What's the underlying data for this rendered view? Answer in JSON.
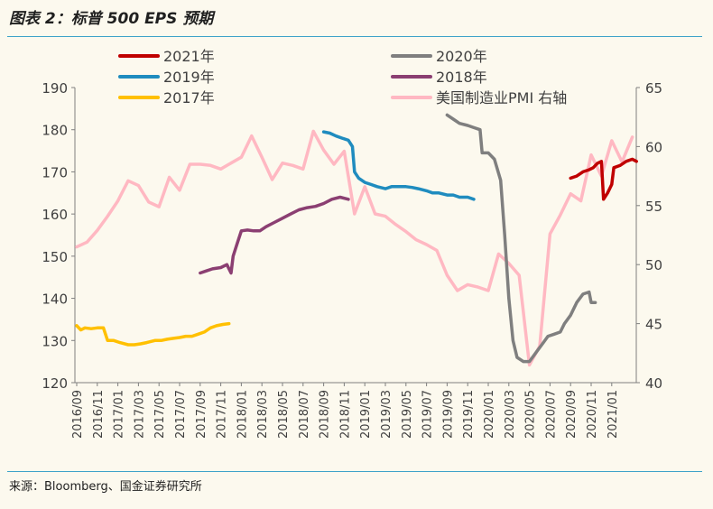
{
  "title": "图表 2：标普 500 EPS 预期",
  "source": "来源：Bloomberg、国金证券研究所",
  "chart_data": {
    "type": "line",
    "title": "图表 2：标普 500 EPS 预期",
    "y_left": {
      "min": 120,
      "max": 190,
      "ticks": [
        120,
        130,
        140,
        150,
        160,
        170,
        180,
        190
      ]
    },
    "y_right": {
      "min": 40,
      "max": 65,
      "ticks": [
        40,
        45,
        50,
        55,
        60,
        65
      ]
    },
    "x_ticks": [
      "2016/09",
      "2016/11",
      "2017/01",
      "2017/03",
      "2017/05",
      "2017/07",
      "2017/09",
      "2017/11",
      "2018/01",
      "2018/03",
      "2018/05",
      "2018/07",
      "2018/09",
      "2018/11",
      "2019/01",
      "2019/03",
      "2019/05",
      "2019/07",
      "2019/09",
      "2019/11",
      "2020/01",
      "2020/03",
      "2020/05",
      "2020/07",
      "2020/09",
      "2020/11",
      "2021/01"
    ],
    "grid": false,
    "legend_placement": "top",
    "series": [
      {
        "name": "2021年",
        "color": "#c00000",
        "axis": "left",
        "points": [
          [
            24.0,
            168.5
          ],
          [
            24.3,
            169
          ],
          [
            24.6,
            170
          ],
          [
            24.9,
            170.5
          ],
          [
            25.1,
            171
          ],
          [
            25.3,
            172
          ],
          [
            25.5,
            172.5
          ],
          [
            25.6,
            163.5
          ],
          [
            25.8,
            165
          ],
          [
            26.0,
            167
          ],
          [
            26.1,
            171
          ],
          [
            26.4,
            171.5
          ],
          [
            26.7,
            172.5
          ],
          [
            27.0,
            173
          ],
          [
            27.2,
            172.5
          ]
        ]
      },
      {
        "name": "2020年",
        "color": "#7f7f7f",
        "axis": "left",
        "points": [
          [
            18.0,
            183.5
          ],
          [
            18.3,
            182.5
          ],
          [
            18.6,
            181.5
          ],
          [
            19.0,
            181
          ],
          [
            19.3,
            180.5
          ],
          [
            19.6,
            180
          ],
          [
            19.7,
            174.5
          ],
          [
            20.0,
            174.5
          ],
          [
            20.3,
            173
          ],
          [
            20.6,
            168
          ],
          [
            20.8,
            155
          ],
          [
            21.0,
            140
          ],
          [
            21.2,
            130
          ],
          [
            21.4,
            126
          ],
          [
            21.7,
            125
          ],
          [
            22.0,
            125
          ],
          [
            22.3,
            127
          ],
          [
            22.6,
            129
          ],
          [
            22.9,
            131
          ],
          [
            23.2,
            131.5
          ],
          [
            23.5,
            132
          ],
          [
            23.7,
            134
          ],
          [
            24.0,
            136
          ],
          [
            24.3,
            139
          ],
          [
            24.6,
            141
          ],
          [
            24.9,
            141.5
          ],
          [
            25.0,
            139
          ],
          [
            25.2,
            139
          ]
        ]
      },
      {
        "name": "2019年",
        "color": "#1f8cbf",
        "axis": "left",
        "points": [
          [
            12.0,
            179.5
          ],
          [
            12.3,
            179.2
          ],
          [
            12.6,
            178.5
          ],
          [
            12.9,
            178
          ],
          [
            13.2,
            177.5
          ],
          [
            13.4,
            176
          ],
          [
            13.5,
            170
          ],
          [
            13.7,
            168.5
          ],
          [
            14.0,
            167.5
          ],
          [
            14.3,
            167
          ],
          [
            14.6,
            166.5
          ],
          [
            15.0,
            166
          ],
          [
            15.3,
            166.5
          ],
          [
            15.6,
            166.5
          ],
          [
            16.0,
            166.5
          ],
          [
            16.3,
            166.3
          ],
          [
            16.6,
            166
          ],
          [
            17.0,
            165.5
          ],
          [
            17.3,
            165
          ],
          [
            17.6,
            165
          ],
          [
            18.0,
            164.5
          ],
          [
            18.3,
            164.5
          ],
          [
            18.6,
            164
          ],
          [
            19.0,
            164
          ],
          [
            19.3,
            163.5
          ]
        ]
      },
      {
        "name": "2018年",
        "color": "#8b3f72",
        "axis": "left",
        "points": [
          [
            6.0,
            146
          ],
          [
            6.3,
            146.5
          ],
          [
            6.6,
            147
          ],
          [
            7.0,
            147.3
          ],
          [
            7.3,
            148
          ],
          [
            7.5,
            146
          ],
          [
            7.6,
            150
          ],
          [
            7.8,
            153
          ],
          [
            8.0,
            156
          ],
          [
            8.3,
            156.2
          ],
          [
            8.6,
            156
          ],
          [
            8.9,
            156
          ],
          [
            9.2,
            157
          ],
          [
            9.6,
            158
          ],
          [
            10.0,
            159
          ],
          [
            10.4,
            160
          ],
          [
            10.8,
            161
          ],
          [
            11.2,
            161.5
          ],
          [
            11.6,
            161.8
          ],
          [
            12.0,
            162.5
          ],
          [
            12.4,
            163.5
          ],
          [
            12.8,
            164
          ],
          [
            13.2,
            163.5
          ]
        ]
      },
      {
        "name": "2017年",
        "color": "#ffc000",
        "axis": "left",
        "points": [
          [
            0.0,
            133.5
          ],
          [
            0.2,
            132.5
          ],
          [
            0.4,
            133
          ],
          [
            0.7,
            132.8
          ],
          [
            1.0,
            133
          ],
          [
            1.3,
            133
          ],
          [
            1.5,
            130
          ],
          [
            1.8,
            130
          ],
          [
            2.1,
            129.5
          ],
          [
            2.5,
            129
          ],
          [
            2.8,
            129
          ],
          [
            3.1,
            129.2
          ],
          [
            3.4,
            129.5
          ],
          [
            3.8,
            130
          ],
          [
            4.1,
            130
          ],
          [
            4.4,
            130.3
          ],
          [
            4.7,
            130.5
          ],
          [
            5.0,
            130.7
          ],
          [
            5.3,
            131
          ],
          [
            5.6,
            131
          ],
          [
            5.9,
            131.5
          ],
          [
            6.2,
            132
          ],
          [
            6.5,
            133
          ],
          [
            6.8,
            133.5
          ],
          [
            7.1,
            133.8
          ],
          [
            7.4,
            134
          ]
        ]
      },
      {
        "name": "美国制造业PMI 右轴",
        "color": "#ffb8c2",
        "axis": "right",
        "points": [
          [
            0,
            51.5
          ],
          [
            0.5,
            51.9
          ],
          [
            1,
            52.9
          ],
          [
            1.5,
            54.1
          ],
          [
            2,
            55.4
          ],
          [
            2.5,
            57.1
          ],
          [
            3,
            56.7
          ],
          [
            3.5,
            55.3
          ],
          [
            4,
            54.9
          ],
          [
            4.5,
            57.4
          ],
          [
            5,
            56.3
          ],
          [
            5.5,
            58.5
          ],
          [
            6,
            58.5
          ],
          [
            6.5,
            58.4
          ],
          [
            7,
            58.1
          ],
          [
            7.5,
            58.6
          ],
          [
            8,
            59.1
          ],
          [
            8.5,
            60.9
          ],
          [
            9,
            59.1
          ],
          [
            9.5,
            57.2
          ],
          [
            10,
            58.6
          ],
          [
            10.5,
            58.4
          ],
          [
            11,
            58.1
          ],
          [
            11.5,
            61.3
          ],
          [
            12,
            59.7
          ],
          [
            12.5,
            58.5
          ],
          [
            13,
            59.6
          ],
          [
            13.5,
            54.3
          ],
          [
            14,
            56.6
          ],
          [
            14.5,
            54.3
          ],
          [
            15,
            54.1
          ],
          [
            15.5,
            53.4
          ],
          [
            16,
            52.8
          ],
          [
            16.5,
            52.1
          ],
          [
            17,
            51.7
          ],
          [
            17.5,
            51.2
          ],
          [
            18,
            49.1
          ],
          [
            18.5,
            47.8
          ],
          [
            19,
            48.3
          ],
          [
            19.5,
            48.1
          ],
          [
            20,
            47.8
          ],
          [
            20.5,
            50.9
          ],
          [
            21,
            50.1
          ],
          [
            21.5,
            49.1
          ],
          [
            22,
            41.5
          ],
          [
            22.5,
            43.1
          ],
          [
            23,
            52.6
          ],
          [
            23.5,
            54.2
          ],
          [
            24,
            56.0
          ],
          [
            24.5,
            55.4
          ],
          [
            25,
            59.3
          ],
          [
            25.5,
            57.5
          ],
          [
            26,
            60.5
          ],
          [
            26.5,
            58.7
          ],
          [
            27,
            60.8
          ]
        ]
      }
    ]
  }
}
